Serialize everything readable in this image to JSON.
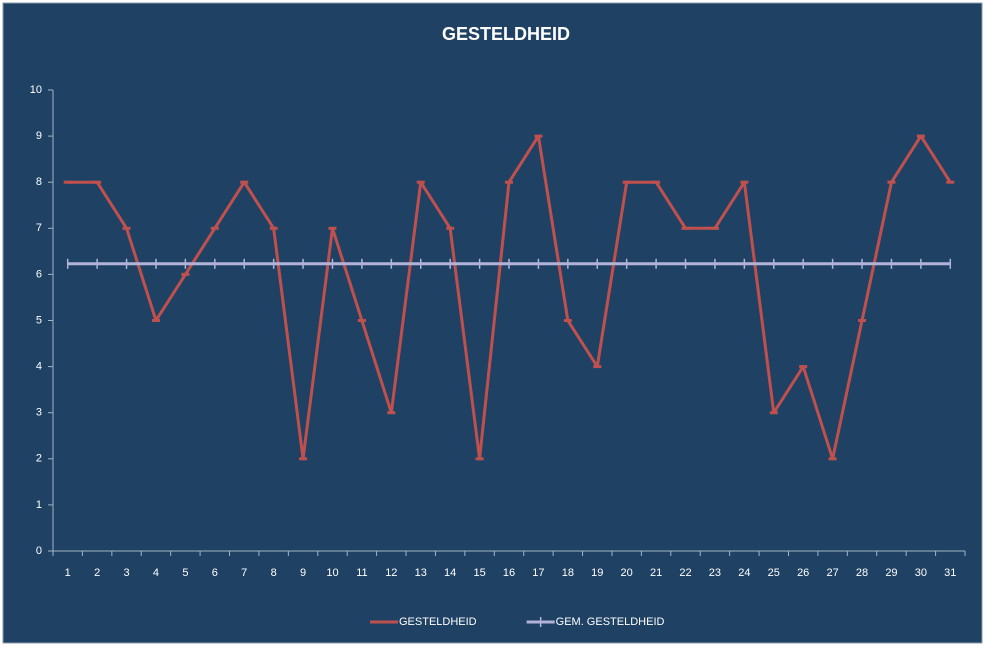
{
  "chart_data": {
    "type": "line",
    "title": "GESTELDHEID",
    "categories": [
      1,
      2,
      3,
      4,
      5,
      6,
      7,
      8,
      9,
      10,
      11,
      12,
      13,
      14,
      15,
      16,
      17,
      18,
      19,
      20,
      21,
      22,
      23,
      24,
      25,
      26,
      27,
      28,
      29,
      30,
      31
    ],
    "series": [
      {
        "name": "GESTELDHEID",
        "color": "#c0504d",
        "values": [
          8,
          8,
          7,
          5,
          6,
          7,
          8,
          7,
          2,
          7,
          5,
          3,
          8,
          7,
          2,
          8,
          9,
          5,
          4,
          8,
          8,
          7,
          7,
          8,
          3,
          4,
          2,
          5,
          8,
          9,
          8
        ]
      },
      {
        "name": "GEM. GESTELDHEID",
        "color": "#b3b3d9",
        "values": [
          6.23,
          6.23,
          6.23,
          6.23,
          6.23,
          6.23,
          6.23,
          6.23,
          6.23,
          6.23,
          6.23,
          6.23,
          6.23,
          6.23,
          6.23,
          6.23,
          6.23,
          6.23,
          6.23,
          6.23,
          6.23,
          6.23,
          6.23,
          6.23,
          6.23,
          6.23,
          6.23,
          6.23,
          6.23,
          6.23,
          6.23
        ]
      }
    ],
    "ylim": [
      0,
      10
    ],
    "yticks": [
      0,
      1,
      2,
      3,
      4,
      5,
      6,
      7,
      8,
      9,
      10
    ],
    "grid": false,
    "legend": "bottom"
  }
}
